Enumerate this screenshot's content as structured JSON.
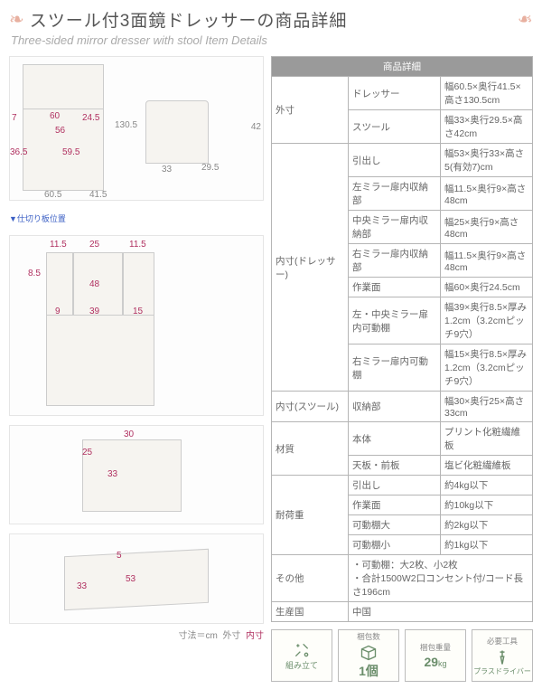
{
  "title": {
    "jp": "スツール付3面鏡ドレッサーの商品詳細",
    "en": "Three-sided mirror dresser with stool Item Details"
  },
  "colors": {
    "dim_red": "#b03060",
    "dim_gray": "#888888",
    "table_header_bg": "#9a9a9a",
    "leaf": "#e8b0a0",
    "footer_green": "#6b8e6b",
    "border": "#b5b5b5"
  },
  "diagrams": {
    "dresser_main": {
      "gray_dims": {
        "width": "60.5",
        "depth": "41.5",
        "height": "130.5"
      },
      "red_dims": {
        "top_w": "60",
        "top_d": "24.5",
        "left_h1": "7",
        "left_h2": "36.5",
        "inner_w": "56",
        "inner_h": "59.5"
      }
    },
    "stool": {
      "gray_dims": {
        "w": "33",
        "d": "29.5",
        "h": "42"
      }
    },
    "divider_label": "▼仕切り板位置",
    "mirrors_open": {
      "red_dims": {
        "left_w": "11.5",
        "mid_w": "25",
        "right_w": "11.5",
        "left_h": "8.5",
        "mid_span": "48",
        "bot_l": "9",
        "bot_m": "39",
        "bot_r": "15"
      }
    },
    "storage_top": {
      "red_dims": {
        "w": "30",
        "d": "25",
        "h": "33"
      }
    },
    "drawer": {
      "red_dims": {
        "w": "53",
        "d": "33",
        "h": "5"
      }
    },
    "legend": {
      "prefix": "寸法＝cm",
      "outer": "外寸",
      "inner": "内寸"
    }
  },
  "spec_table": {
    "header": "商品詳細",
    "rows": [
      {
        "g": "外寸",
        "n": "ドレッサー",
        "v": "幅60.5×奥行41.5×高さ130.5cm"
      },
      {
        "g": "",
        "n": "スツール",
        "v": "幅33×奥行29.5×高さ42cm"
      },
      {
        "g": "内寸(ドレッサー)",
        "n": "引出し",
        "v": "幅53×奥行33×高さ5(有効7)cm"
      },
      {
        "g": "",
        "n": "左ミラー扉内収納部",
        "v": "幅11.5×奥行9×高さ48cm"
      },
      {
        "g": "",
        "n": "中央ミラー扉内収納部",
        "v": "幅25×奥行9×高さ48cm"
      },
      {
        "g": "",
        "n": "右ミラー扉内収納部",
        "v": "幅11.5×奥行9×高さ48cm"
      },
      {
        "g": "",
        "n": "作業面",
        "v": "幅60×奥行24.5cm"
      },
      {
        "g": "",
        "n": "左・中央ミラー扉内可動棚",
        "v": "幅39×奥行8.5×厚み1.2cm（3.2cmピッチ9穴）"
      },
      {
        "g": "",
        "n": "右ミラー扉内可動棚",
        "v": "幅15×奥行8.5×厚み1.2cm（3.2cmピッチ9穴）"
      },
      {
        "g": "内寸(スツール)",
        "n": "収納部",
        "v": "幅30×奥行25×高さ33cm"
      },
      {
        "g": "材質",
        "n": "本体",
        "v": "プリント化粧繊維板"
      },
      {
        "g": "",
        "n": "天板・前板",
        "v": "塩ビ化粧繊維板"
      },
      {
        "g": "耐荷重",
        "n": "引出し",
        "v": "約4kg以下"
      },
      {
        "g": "",
        "n": "作業面",
        "v": "約10kg以下"
      },
      {
        "g": "",
        "n": "可動棚大",
        "v": "約2kg以下"
      },
      {
        "g": "",
        "n": "可動棚小",
        "v": "約1kg以下"
      },
      {
        "g": "その他",
        "n": "",
        "v": "・可動棚：大2枚、小2枚\n・合計1500W2口コンセント付/コード長さ196cm"
      },
      {
        "g": "生産国",
        "n": "",
        "v": "中国"
      }
    ]
  },
  "footer": {
    "assembly": "組み立て",
    "pack_count_label": "梱包数",
    "pack_count_value": "1個",
    "pack_weight_label": "梱包重量",
    "pack_weight_value": "29",
    "pack_weight_unit": "kg",
    "tool_label": "必要工具",
    "tool_value": "プラスドライバー"
  }
}
